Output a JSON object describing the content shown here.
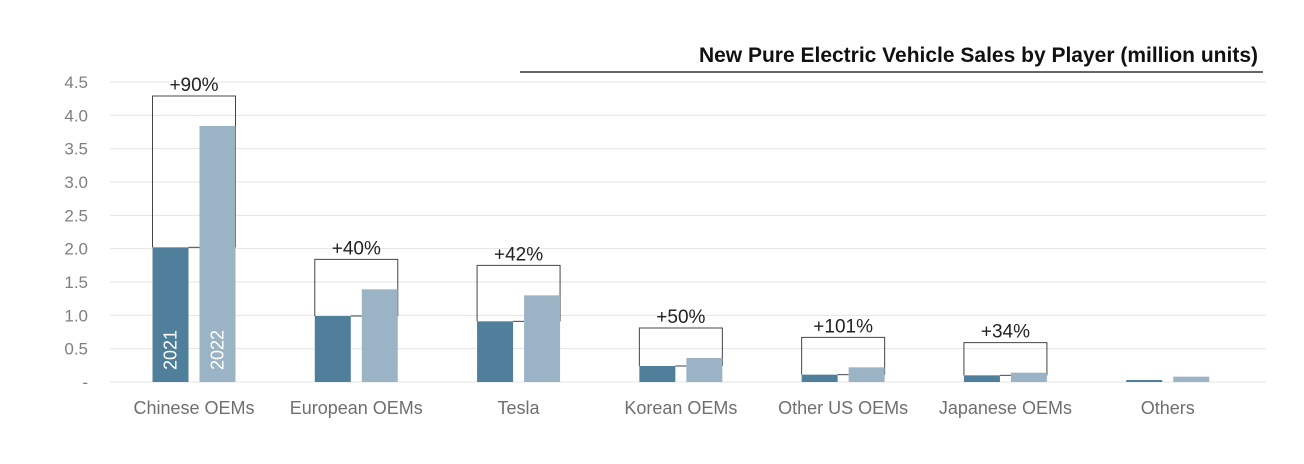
{
  "chart_data": {
    "type": "bar",
    "title": "New Pure Electric Vehicle Sales by Player (million units)",
    "categories": [
      "Chinese OEMs",
      "European OEMs",
      "Tesla",
      "Korean OEMs",
      "Other US OEMs",
      "Japanese OEMs",
      "Others"
    ],
    "series": [
      {
        "name": "2021",
        "color": "#4f7f9b",
        "values": [
          2.02,
          0.99,
          0.91,
          0.24,
          0.11,
          0.1,
          0.03
        ]
      },
      {
        "name": "2022",
        "color": "#9ab4c6",
        "values": [
          3.84,
          1.39,
          1.3,
          0.36,
          0.22,
          0.14,
          0.08
        ]
      }
    ],
    "growth_labels": [
      "+90%",
      "+40%",
      "+42%",
      "+50%",
      "+101%",
      "+34%",
      ""
    ],
    "yticks": [
      {
        "value": 0,
        "label": "-"
      },
      {
        "value": 0.5,
        "label": "0.5"
      },
      {
        "value": 1.0,
        "label": "1.0"
      },
      {
        "value": 1.5,
        "label": "1.5"
      },
      {
        "value": 2.0,
        "label": "2.0"
      },
      {
        "value": 2.5,
        "label": "2.5"
      },
      {
        "value": 3.0,
        "label": "3.0"
      },
      {
        "value": 3.5,
        "label": "3.5"
      },
      {
        "value": 4.0,
        "label": "4.0"
      },
      {
        "value": 4.5,
        "label": "4.5"
      }
    ],
    "ylim": [
      0,
      4.5
    ],
    "grid": true,
    "xlabel": "",
    "ylabel": ""
  }
}
